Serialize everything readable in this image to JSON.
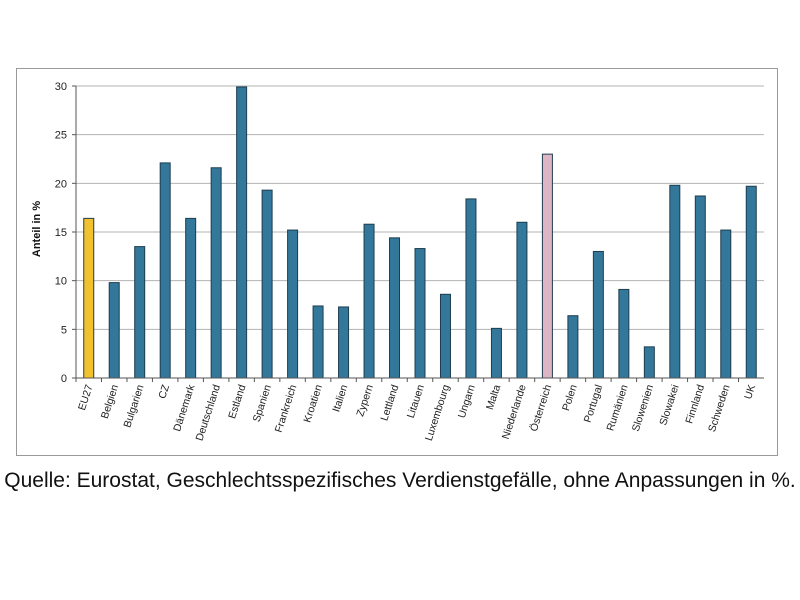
{
  "chart_data": {
    "type": "bar",
    "title": "",
    "xlabel": "",
    "ylabel": "Anteil in %",
    "ylim": [
      0,
      30
    ],
    "yticks": [
      0,
      5,
      10,
      15,
      20,
      25,
      30
    ],
    "grid": true,
    "legend": "none",
    "categories": [
      "EU27",
      "Belgien",
      "Bulgarien",
      "CZ",
      "Dänemark",
      "Deutschland",
      "Estland",
      "Spanien",
      "Frankreich",
      "Kroatien",
      "Italien",
      "Zypern",
      "Lettland",
      "Litauen",
      "Luxembourg",
      "Ungarn",
      "Malta",
      "Niederlande",
      "Österreich",
      "Polen",
      "Portugal",
      "Rumänien",
      "Slowenien",
      "Slowakei",
      "Finnland",
      "Schweden",
      "UK"
    ],
    "values": [
      16.4,
      9.8,
      13.5,
      22.1,
      16.4,
      21.6,
      29.9,
      19.3,
      15.2,
      7.4,
      7.3,
      15.8,
      14.4,
      13.3,
      8.6,
      18.4,
      5.1,
      16.0,
      23.0,
      6.4,
      13.0,
      9.1,
      3.2,
      19.8,
      18.7,
      15.2,
      19.7
    ],
    "colors": {
      "default": "#33779a",
      "EU27": "#f2c12e",
      "Österreich": "#dcb6c4",
      "outline": "#1e3d4f",
      "grid": "#b3b3b3"
    }
  },
  "caption": "Quelle: Eurostat, Geschlechtsspezifisches Verdienstgefälle, ohne Anpassungen in %."
}
